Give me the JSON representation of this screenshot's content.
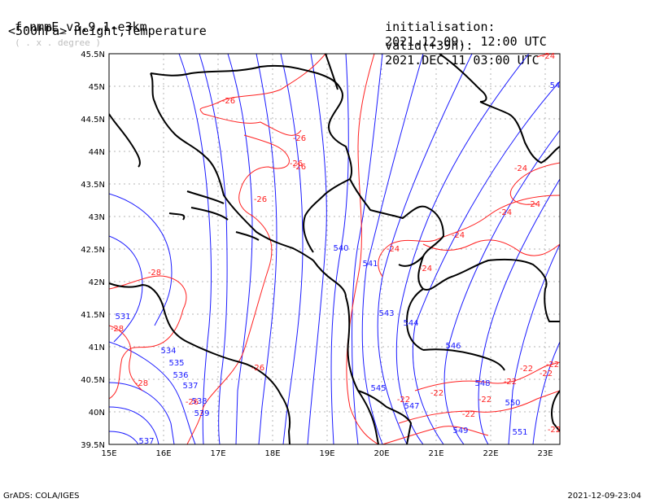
{
  "header": {
    "model": "f-nmmE_v3.9.1-e3km",
    "units": "( . x . degree )",
    "field": "<500hPa> Height,Temperature",
    "init_label": "initialisation:",
    "init_value": "2021.12.09.  12:00 UTC",
    "valid_label": "valid(+39h):",
    "valid_value": "2021.DEC.11 03:00 UTC"
  },
  "axes": {
    "lat_labels": [
      "45.5N",
      "45N",
      "44.5N",
      "44N",
      "43.5N",
      "43N",
      "42.5N",
      "42N",
      "41.5N",
      "41N",
      "40.5N",
      "40N",
      "39.5N"
    ],
    "lon_labels": [
      "15E",
      "16E",
      "17E",
      "18E",
      "19E",
      "20E",
      "21E",
      "22E",
      "23E"
    ]
  },
  "height_contours": [
    "531",
    "534",
    "535",
    "536",
    "537",
    "537",
    "538",
    "539",
    "540",
    "541",
    "543",
    "544",
    "545",
    "546",
    "547",
    "548",
    "549",
    "550",
    "551",
    "54"
  ],
  "temperature_contours": [
    "-26",
    "-26",
    "-26",
    "-26",
    "-26",
    "-26",
    "-26",
    "-28",
    "-28",
    "-28",
    "-24",
    "-24",
    "-24",
    "-24",
    "-24",
    "-24",
    "-24",
    "-22",
    "-22",
    "-22",
    "-22",
    "-22",
    "-22",
    "-22",
    "-22",
    "-22"
  ],
  "footer": {
    "left": "GrADS: COLA/IGES",
    "right": "2021-12-09-23:04"
  },
  "colors": {
    "height": "#1a1aff",
    "temperature": "#ff2020",
    "borders": "#000000",
    "grid": "#b4b4b4"
  }
}
